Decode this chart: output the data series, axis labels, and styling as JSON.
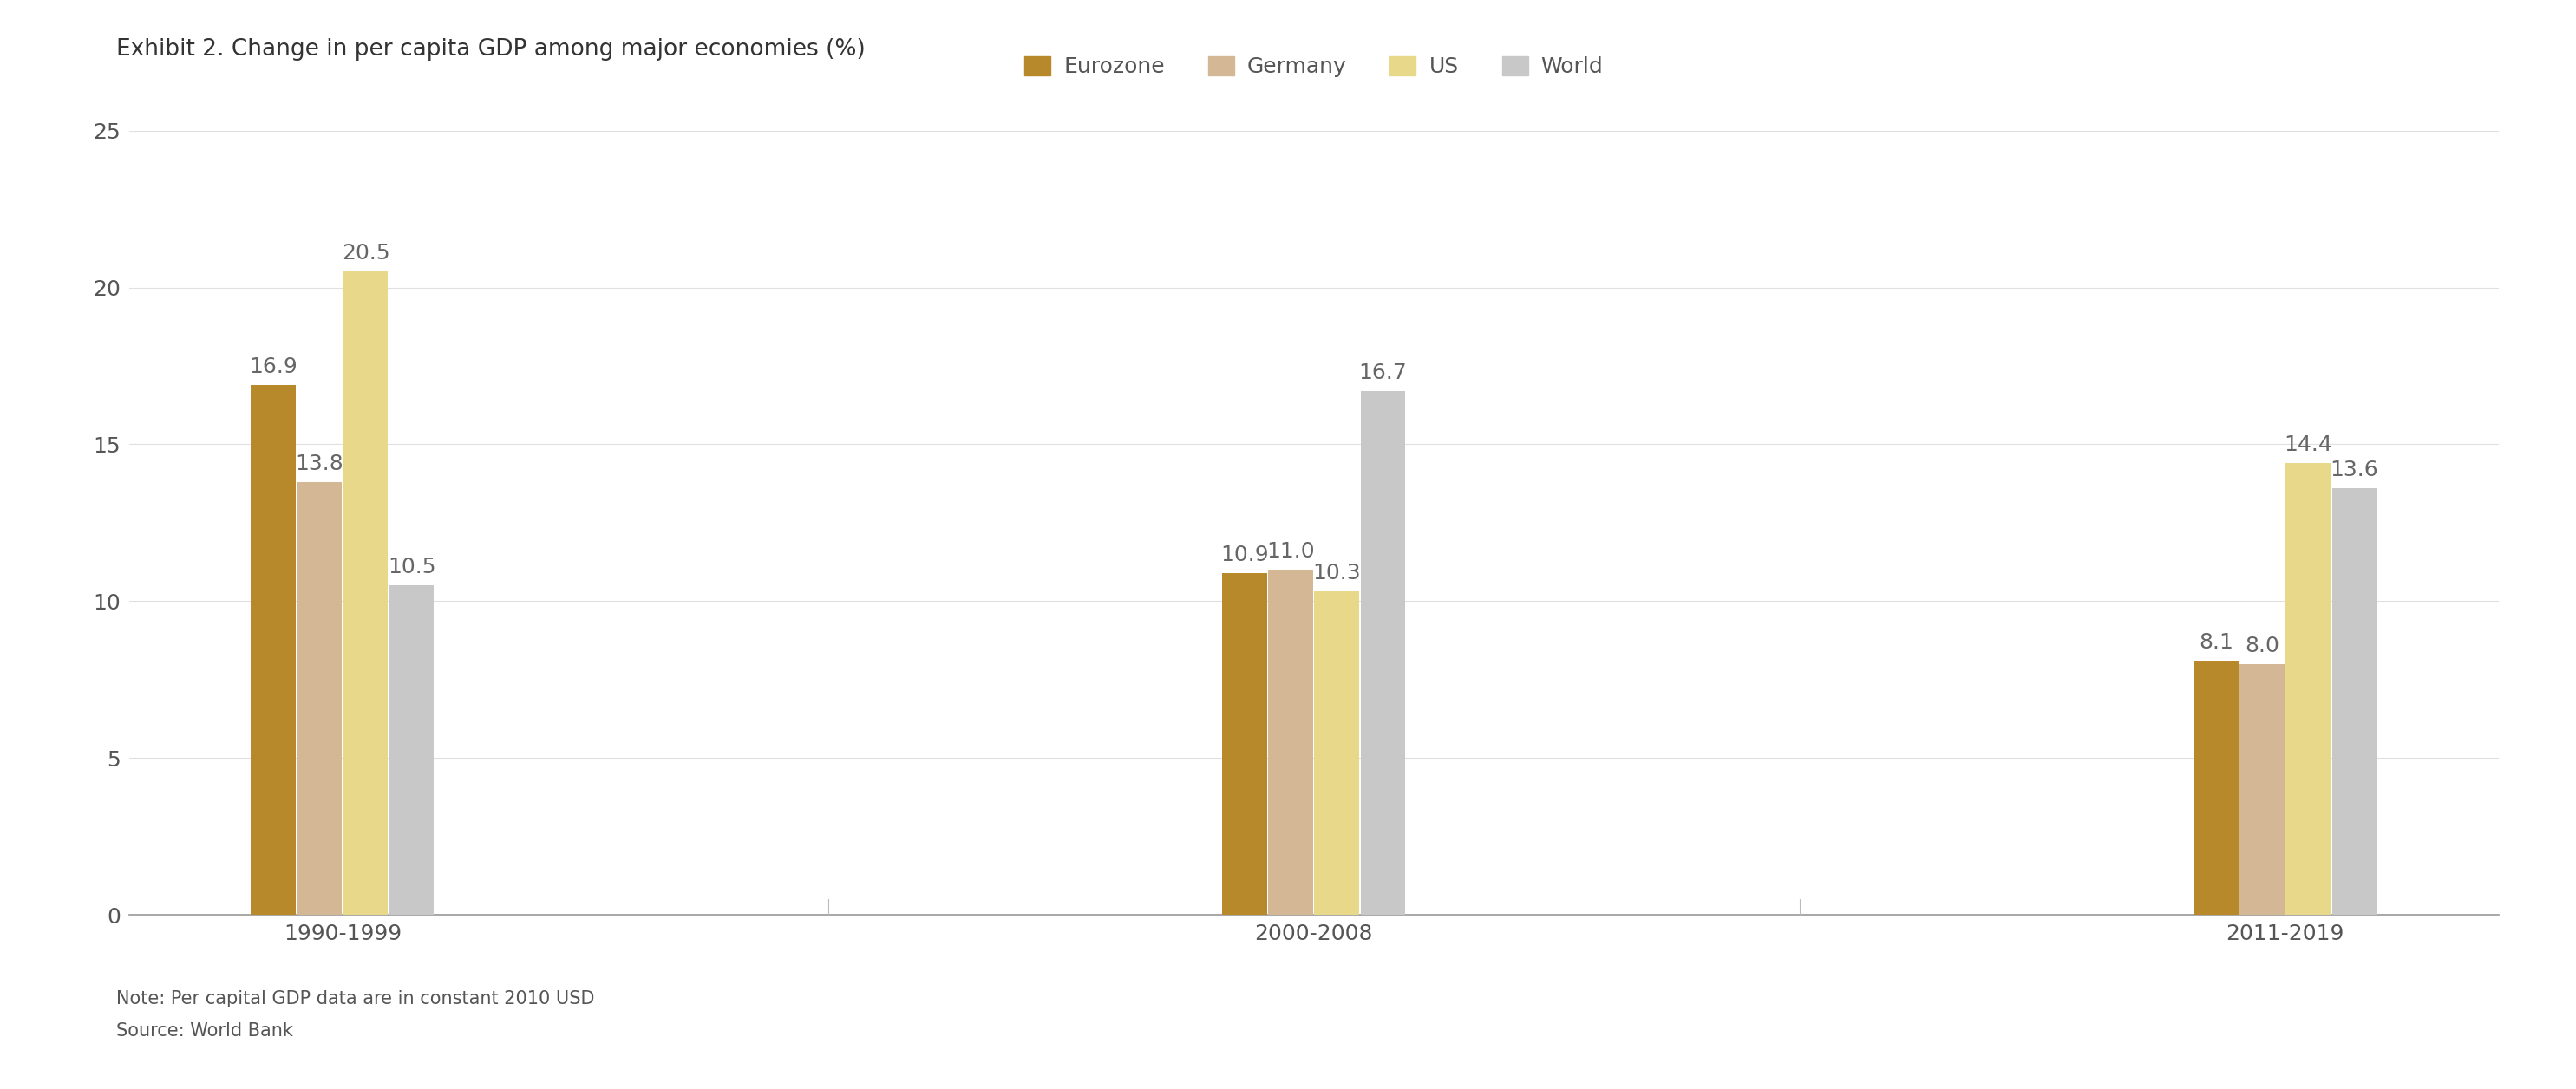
{
  "title": "Exhibit 2. Change in per capita GDP among major economies (%)",
  "series": [
    "Eurozone",
    "Germany",
    "US",
    "World"
  ],
  "periods": [
    "1990-1999",
    "2000-2008",
    "2011-2019"
  ],
  "values": {
    "1990-1999": [
      16.9,
      13.8,
      20.5,
      10.5
    ],
    "2000-2008": [
      10.9,
      11.0,
      10.3,
      16.7
    ],
    "2011-2019": [
      8.1,
      8.0,
      14.4,
      13.6
    ]
  },
  "colors": [
    "#b8892a",
    "#d4b896",
    "#e8d98a",
    "#c8c8c8"
  ],
  "ylim": [
    0,
    25
  ],
  "yticks": [
    0,
    5,
    10,
    15,
    20,
    25
  ],
  "note": "Note: Per capital GDP data are in constant 2010 USD",
  "source": "Source: World Bank",
  "background_color": "#ffffff",
  "label_fontsize": 18,
  "title_fontsize": 19,
  "legend_fontsize": 18,
  "axis_fontsize": 18,
  "note_fontsize": 15
}
